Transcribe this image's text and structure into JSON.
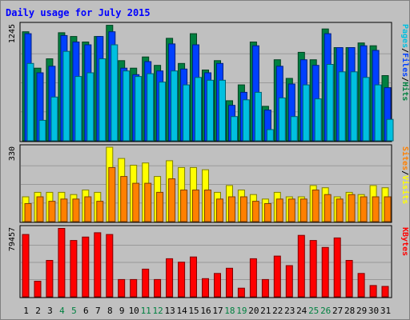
{
  "chart_data": {
    "type": "bar",
    "title": "Daily usage for July 2015",
    "categories": [
      "1",
      "2",
      "3",
      "4",
      "5",
      "6",
      "7",
      "8",
      "9",
      "10",
      "11",
      "12",
      "13",
      "14",
      "15",
      "16",
      "17",
      "18",
      "19",
      "20",
      "21",
      "22",
      "23",
      "24",
      "25",
      "26",
      "27",
      "28",
      "29",
      "30",
      "31"
    ],
    "weekend_days": [
      "4",
      "5",
      "11",
      "12",
      "18",
      "19",
      "25",
      "26"
    ],
    "panels": [
      {
        "id": "hits-files-pages",
        "ymax": 1245,
        "ymax_label": "1245",
        "side_label": [
          "Pages",
          "/",
          "Files",
          "/",
          "Hits"
        ],
        "side_label_colors": [
          "#00c0e0",
          "#000000",
          "#0040ff",
          "#000000",
          "#008040"
        ],
        "series": [
          {
            "name": "Hits",
            "color": "#008040",
            "values": [
              1170,
              780,
              880,
              1160,
              1120,
              1060,
              1120,
              1240,
              860,
              780,
              900,
              810,
              1100,
              830,
              1150,
              760,
              860,
              430,
              600,
              1060,
              370,
              870,
              670,
              950,
              870,
              1200,
              1000,
              1000,
              1050,
              1020,
              700
            ]
          },
          {
            "name": "Files",
            "color": "#0040ff",
            "values": [
              1150,
              730,
              800,
              1130,
              1060,
              1030,
              1120,
              1170,
              780,
              710,
              850,
              750,
              1040,
              770,
              1030,
              730,
              830,
              380,
              520,
              1020,
              330,
              800,
              610,
              870,
              810,
              1150,
              1000,
              1000,
              1020,
              970,
              570
            ]
          },
          {
            "name": "Pages",
            "color": "#00c0e0",
            "values": [
              830,
              220,
              470,
              960,
              690,
              730,
              880,
              1030,
              750,
              690,
              720,
              630,
              750,
              600,
              680,
              650,
              650,
              260,
              440,
              520,
              120,
              460,
              260,
              600,
              450,
              820,
              740,
              740,
              680,
              600,
              230
            ]
          }
        ]
      },
      {
        "id": "visits-sites",
        "ymax": 330,
        "ymax_label": "330",
        "side_label": [
          "Sites",
          "/",
          "Visits"
        ],
        "side_label_colors": [
          "#ff8000",
          "#000000",
          "#ffff00"
        ],
        "series": [
          {
            "name": "Visits",
            "color": "#ffff00",
            "values": [
              110,
              130,
              130,
              130,
              120,
              140,
              130,
              330,
              280,
              250,
              260,
              200,
              270,
              240,
              240,
              230,
              130,
              160,
              140,
              120,
              100,
              130,
              110,
              110,
              160,
              150,
              110,
              130,
              120,
              160,
              150
            ]
          },
          {
            "name": "Sites",
            "color": "#ff8000",
            "values": [
              80,
              110,
              90,
              100,
              100,
              110,
              90,
              240,
              200,
              170,
              170,
              130,
              190,
              140,
              140,
              140,
              100,
              110,
              110,
              90,
              80,
              100,
              100,
              100,
              140,
              120,
              100,
              120,
              110,
              110,
              110
            ]
          }
        ]
      },
      {
        "id": "kbytes",
        "ymax": 79457,
        "ymax_label": "79457",
        "side_label": [
          "KBytes"
        ],
        "side_label_colors": [
          "#ff0000"
        ],
        "series": [
          {
            "name": "KBytes",
            "color": "#ff0000",
            "values": [
              72000,
              18000,
              42000,
              79000,
              65000,
              69000,
              74000,
              72000,
              20000,
              20000,
              32000,
              20000,
              44000,
              40000,
              46000,
              21000,
              27000,
              33000,
              10000,
              44000,
              20000,
              47000,
              36000,
              71000,
              65000,
              57000,
              68000,
              42000,
              27000,
              13000,
              12000
            ]
          }
        ]
      }
    ]
  }
}
